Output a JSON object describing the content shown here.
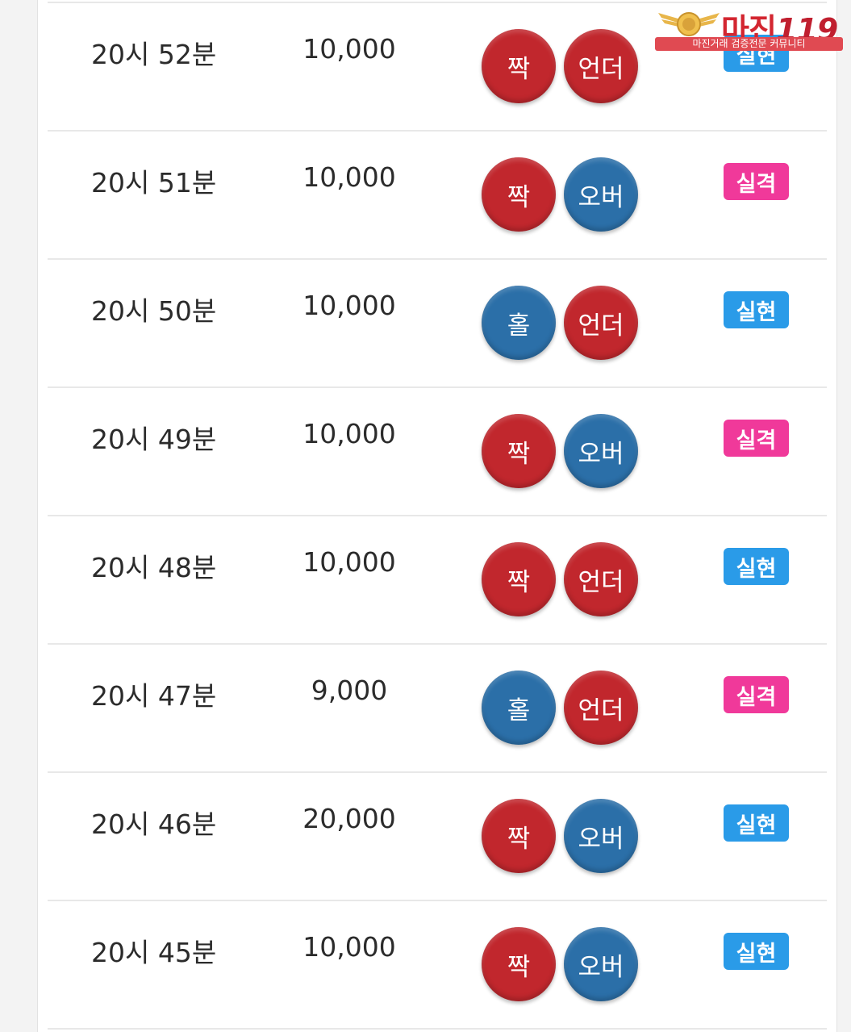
{
  "logo": {
    "title": "마진",
    "number": "119",
    "subtitle": "마진거래 검증전문 커뮤니티"
  },
  "colors": {
    "chip_red": "#c1272d",
    "chip_blue": "#2b6fa8",
    "badge_success": "#2a9be8",
    "badge_fail": "#f0399a"
  },
  "rows": [
    {
      "time": "20시 52분",
      "amount": "10,000",
      "pick1": "짝",
      "pick1_color": "red",
      "pick2": "언더",
      "pick2_color": "red",
      "result": "실현",
      "result_type": "success"
    },
    {
      "time": "20시 51분",
      "amount": "10,000",
      "pick1": "짝",
      "pick1_color": "red",
      "pick2": "오버",
      "pick2_color": "blue",
      "result": "실격",
      "result_type": "fail"
    },
    {
      "time": "20시 50분",
      "amount": "10,000",
      "pick1": "홀",
      "pick1_color": "blue",
      "pick2": "언더",
      "pick2_color": "red",
      "result": "실현",
      "result_type": "success"
    },
    {
      "time": "20시 49분",
      "amount": "10,000",
      "pick1": "짝",
      "pick1_color": "red",
      "pick2": "오버",
      "pick2_color": "blue",
      "result": "실격",
      "result_type": "fail"
    },
    {
      "time": "20시 48분",
      "amount": "10,000",
      "pick1": "짝",
      "pick1_color": "red",
      "pick2": "언더",
      "pick2_color": "red",
      "result": "실현",
      "result_type": "success"
    },
    {
      "time": "20시 47분",
      "amount": "9,000",
      "pick1": "홀",
      "pick1_color": "blue",
      "pick2": "언더",
      "pick2_color": "red",
      "result": "실격",
      "result_type": "fail"
    },
    {
      "time": "20시 46분",
      "amount": "20,000",
      "pick1": "짝",
      "pick1_color": "red",
      "pick2": "오버",
      "pick2_color": "blue",
      "result": "실현",
      "result_type": "success"
    },
    {
      "time": "20시 45분",
      "amount": "10,000",
      "pick1": "짝",
      "pick1_color": "red",
      "pick2": "오버",
      "pick2_color": "blue",
      "result": "실현",
      "result_type": "success"
    }
  ]
}
